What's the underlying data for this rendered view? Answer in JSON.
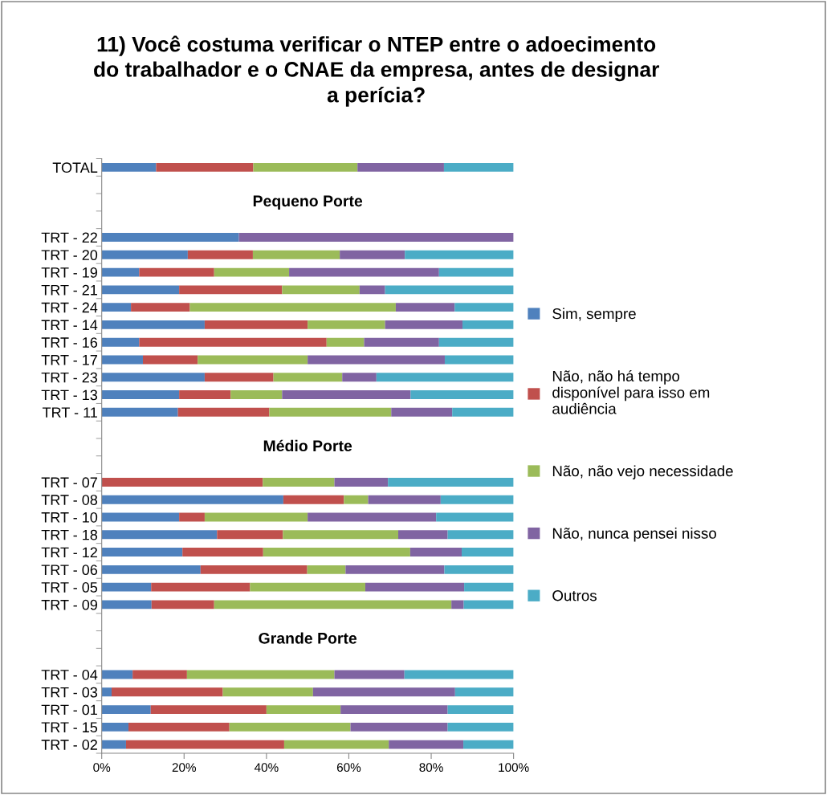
{
  "chart_data": {
    "type": "bar",
    "orientation": "horizontal",
    "stacked": true,
    "title": "11) Você costuma verificar o NTEP entre o adoecimento do trabalhador e o CNAE da empresa, antes de designar a perícia?",
    "categories": [
      "TOTAL",
      null,
      null,
      null,
      "TRT - 22",
      "TRT - 20",
      "TRT - 19",
      "TRT - 21",
      "TRT - 24",
      "TRT - 14",
      "TRT - 16",
      "TRT - 17",
      "TRT - 23",
      "TRT - 13",
      "TRT - 11",
      null,
      null,
      null,
      "TRT - 07",
      "TRT - 08",
      "TRT - 10",
      "TRT - 18",
      "TRT - 12",
      "TRT - 06",
      "TRT - 05",
      "TRT - 09",
      null,
      null,
      null,
      "TRT - 04",
      "TRT - 03",
      "TRT - 01",
      "TRT - 15",
      "TRT - 02"
    ],
    "series": [
      {
        "name": "Sim, sempre",
        "color": "#4f81bd",
        "values": [
          13.2,
          null,
          null,
          null,
          33.3,
          20.9,
          9.1,
          18.8,
          7.1,
          25.0,
          9.1,
          10.0,
          25.0,
          18.8,
          18.5,
          null,
          null,
          null,
          0,
          44.1,
          18.8,
          28.0,
          19.6,
          24.0,
          12.0,
          12.1,
          null,
          null,
          null,
          7.5,
          2.4,
          11.9,
          6.5,
          5.9
        ]
      },
      {
        "name": "Não, não há tempo disponível para isso em audiência",
        "color": "#c0504d",
        "values": [
          23.6,
          null,
          null,
          null,
          0,
          15.8,
          18.2,
          25.0,
          14.3,
          25.0,
          45.5,
          13.3,
          16.7,
          12.5,
          22.2,
          null,
          null,
          null,
          39.1,
          14.7,
          6.2,
          16.0,
          19.6,
          25.9,
          24.0,
          15.2,
          null,
          null,
          null,
          13.2,
          27.0,
          28.1,
          24.5,
          38.4
        ]
      },
      {
        "name": "Não, não vejo necessidade",
        "color": "#9bbb59",
        "values": [
          25.3,
          null,
          null,
          null,
          0,
          21.1,
          18.2,
          18.8,
          50.0,
          18.8,
          9.1,
          26.7,
          16.7,
          12.5,
          29.6,
          null,
          null,
          null,
          17.4,
          5.9,
          25.0,
          28.0,
          35.7,
          9.3,
          28.0,
          57.6,
          null,
          null,
          null,
          35.8,
          21.9,
          18.0,
          29.4,
          25.4
        ]
      },
      {
        "name": "Não, nunca pensei nisso",
        "color": "#8064a2",
        "values": [
          21.0,
          null,
          null,
          null,
          66.7,
          15.8,
          36.4,
          6.2,
          14.3,
          18.8,
          18.2,
          33.3,
          8.3,
          31.2,
          14.8,
          null,
          null,
          null,
          13.0,
          17.6,
          31.2,
          12.0,
          12.5,
          24.0,
          24.0,
          3.0,
          null,
          null,
          null,
          17.0,
          34.5,
          26.0,
          23.6,
          18.1
        ]
      },
      {
        "name": "Outros",
        "color": "#4bacc6",
        "values": [
          16.9,
          null,
          null,
          null,
          0,
          26.4,
          18.1,
          31.2,
          14.3,
          12.4,
          18.1,
          16.7,
          33.3,
          25.0,
          14.9,
          null,
          null,
          null,
          30.5,
          17.7,
          18.8,
          16.0,
          12.6,
          16.8,
          12.0,
          12.1,
          null,
          null,
          null,
          26.5,
          14.2,
          16.0,
          16.0,
          12.2
        ]
      }
    ],
    "annotations": [
      "Pequeno Porte",
      "Médio Porte",
      "Grande Porte"
    ],
    "xlim": [
      0,
      100
    ],
    "xticks": [
      {
        "value": 0,
        "label": "0%"
      },
      {
        "value": 20,
        "label": "20%"
      },
      {
        "value": 40,
        "label": "40%"
      },
      {
        "value": 60,
        "label": "60%"
      },
      {
        "value": 80,
        "label": "80%"
      },
      {
        "value": 100,
        "label": "100%"
      }
    ],
    "grid": false,
    "legend": "right"
  }
}
